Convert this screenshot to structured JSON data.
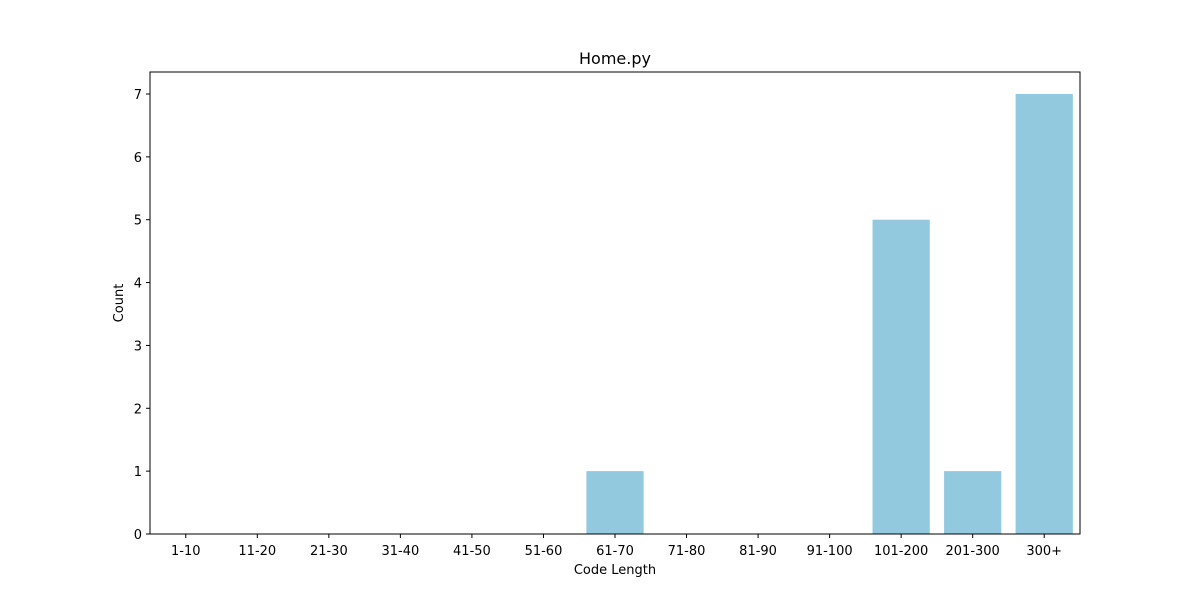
{
  "chart_data": {
    "type": "bar",
    "title": "Home.py",
    "xlabel": "Code Length",
    "ylabel": "Count",
    "categories": [
      "1-10",
      "11-20",
      "21-30",
      "31-40",
      "41-50",
      "51-60",
      "61-70",
      "71-80",
      "81-90",
      "91-100",
      "101-200",
      "201-300",
      "300+"
    ],
    "values": [
      0,
      0,
      0,
      0,
      0,
      0,
      1,
      0,
      0,
      0,
      5,
      1,
      7
    ],
    "ylim": [
      0,
      7.35
    ],
    "yticks": [
      0,
      1,
      2,
      3,
      4,
      5,
      6,
      7
    ],
    "bar_color": "#92c9df",
    "grid": false,
    "legend": false
  }
}
